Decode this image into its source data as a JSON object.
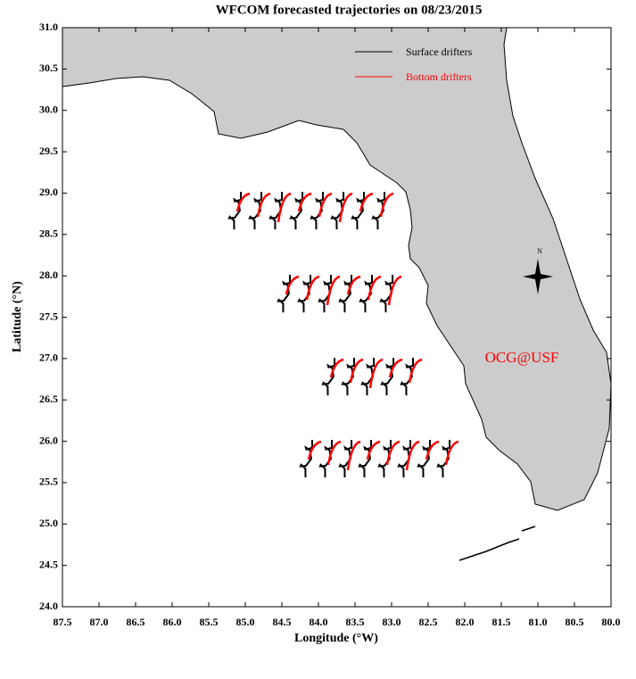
{
  "chart_data": {
    "type": "map",
    "title": "WFCOM forecasted trajectories on 08/23/2015",
    "x_label": "Longitude (°W)",
    "y_label": "Latitude (°N)",
    "xlim": [
      87.5,
      80.0
    ],
    "ylim": [
      24.0,
      31.0
    ],
    "xticks": [
      87.5,
      {
        "value": 87,
        "label": "87.0"
      },
      86.5,
      {
        "value": 86,
        "label": "86.0"
      },
      85.5,
      {
        "value": 85,
        "label": "85.0"
      },
      84.5,
      {
        "value": 84,
        "label": "84.0"
      },
      83.5,
      {
        "value": 83,
        "label": "83.0"
      },
      82.5,
      {
        "value": 82,
        "label": "82.0"
      },
      81.5,
      {
        "value": 81,
        "label": "81.0"
      },
      80.5,
      {
        "value": 80,
        "label": "80.0"
      }
    ],
    "yticks": [
      {
        "value": 24,
        "label": "24.0"
      },
      24.5,
      {
        "value": 25,
        "label": "25.0"
      },
      25.5,
      {
        "value": 26,
        "label": "26.0"
      },
      26.5,
      {
        "value": 27,
        "label": "27.0"
      },
      27.5,
      {
        "value": 28,
        "label": "28.0"
      },
      28.5,
      {
        "value": 29,
        "label": "29.0"
      },
      29.5,
      {
        "value": 30,
        "label": "30.0"
      },
      30.5,
      {
        "value": 31,
        "label": "31.0"
      }
    ],
    "series": [
      {
        "name": "Surface drifters",
        "color": "#000000"
      },
      {
        "name": "Bottom drifters",
        "color": "#ff0000"
      }
    ],
    "annotations": [
      "OCG@USF",
      "N"
    ]
  }
}
